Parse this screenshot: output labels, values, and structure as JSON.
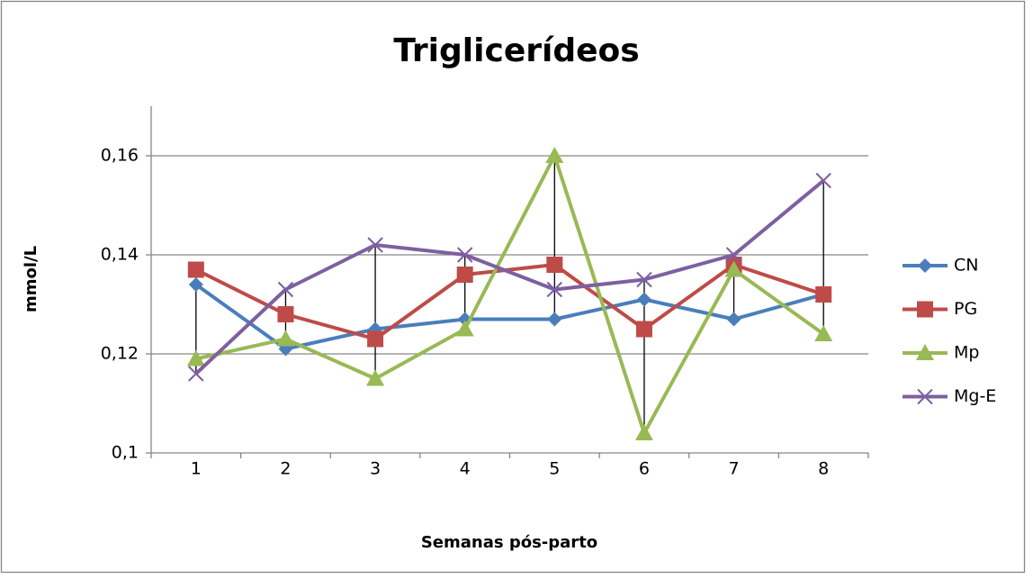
{
  "chart_data": {
    "type": "line",
    "title": "Triglicerídeos",
    "x_label": "Semanas pós-parto",
    "y_label": "mmol/L",
    "categories": [
      "1",
      "2",
      "3",
      "4",
      "5",
      "6",
      "7",
      "8"
    ],
    "series": [
      {
        "name": "CN",
        "color": "#4a7ebb",
        "marker": "diamond",
        "values": [
          0.134,
          0.121,
          0.125,
          0.127,
          0.127,
          0.131,
          0.127,
          0.132
        ]
      },
      {
        "name": "PG",
        "color": "#be4b48",
        "marker": "square",
        "values": [
          0.137,
          0.128,
          0.123,
          0.136,
          0.138,
          0.125,
          0.138,
          0.132
        ]
      },
      {
        "name": "Mp",
        "color": "#98b954",
        "marker": "triangle",
        "values": [
          0.119,
          0.123,
          0.115,
          0.125,
          0.16,
          0.104,
          0.137,
          0.124
        ]
      },
      {
        "name": "Mg-E",
        "color": "#7d60a0",
        "marker": "x",
        "values": [
          0.116,
          0.133,
          0.142,
          0.14,
          0.133,
          0.135,
          0.14,
          0.155
        ]
      }
    ],
    "ylim": [
      0.1,
      0.17
    ],
    "yticks": [
      {
        "value": 0.1,
        "label": "0,1"
      },
      {
        "value": 0.12,
        "label": "0,12"
      },
      {
        "value": 0.14,
        "label": "0,14"
      },
      {
        "value": 0.16,
        "label": "0,16"
      }
    ],
    "grid": true,
    "high_low_lines": true,
    "legend": "right"
  }
}
